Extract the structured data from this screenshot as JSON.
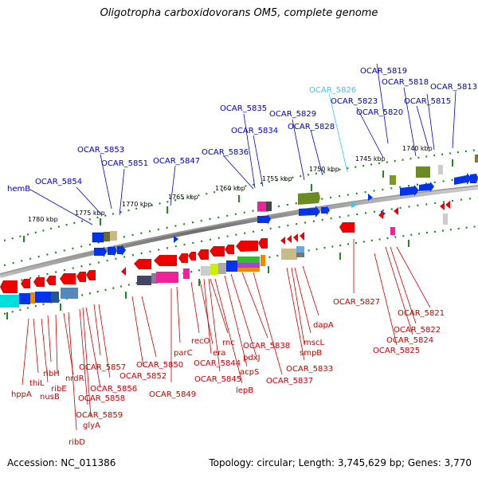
{
  "title": "Oligotropha carboxidovorans OM5, complete genome",
  "footer": {
    "accession": "Accession: NC_011386",
    "topology": "Topology: circular; Length: 3,745,629 bp; Genes: 3,770"
  },
  "kbp_ticks": [
    "1780 kbp",
    "1775 kbp",
    "1770 kbp",
    "1765 kbp",
    "1760 kbp",
    "1755 kbp",
    "1750 kbp",
    "1745 kbp",
    "1740 kbp"
  ],
  "genes_top": [
    "hemB",
    "OCAR_5854",
    "OCAR_5853",
    "OCAR_5851",
    "OCAR_5847",
    "OCAR_5836",
    "OCAR_5835",
    "OCAR_5834",
    "OCAR_5829",
    "OCAR_5828",
    "OCAR_5826",
    "OCAR_5823",
    "OCAR_5820",
    "OCAR_5819",
    "OCAR_5818",
    "OCAR_5815",
    "OCAR_5813"
  ],
  "genes_bottom": [
    "hppA",
    "thiL",
    "nusB",
    "ribH",
    "ribE",
    "nrdR",
    "ribD",
    "OCAR_5857",
    "OCAR_5856",
    "OCAR_5858",
    "OCAR_5859",
    "glyA",
    "OCAR_5852",
    "OCAR_5850",
    "OCAR_5849",
    "parC",
    "recO",
    "era",
    "rnc",
    "OCAR_5844",
    "OCAR_5845",
    "lepB",
    "acpS",
    "pdxJ",
    "OCAR_5838",
    "OCAR_5837",
    "OCAR_5833",
    "smpB",
    "mscL",
    "dapA",
    "OCAR_5827",
    "OCAR_5821",
    "OCAR_5822",
    "OCAR_5824",
    "OCAR_5825"
  ],
  "colors": {
    "forward_label": "#0000cc",
    "reverse_label": "#cc0000",
    "highlight_label": "#33ccee",
    "tick": "#228822",
    "backbone": "#888888"
  }
}
